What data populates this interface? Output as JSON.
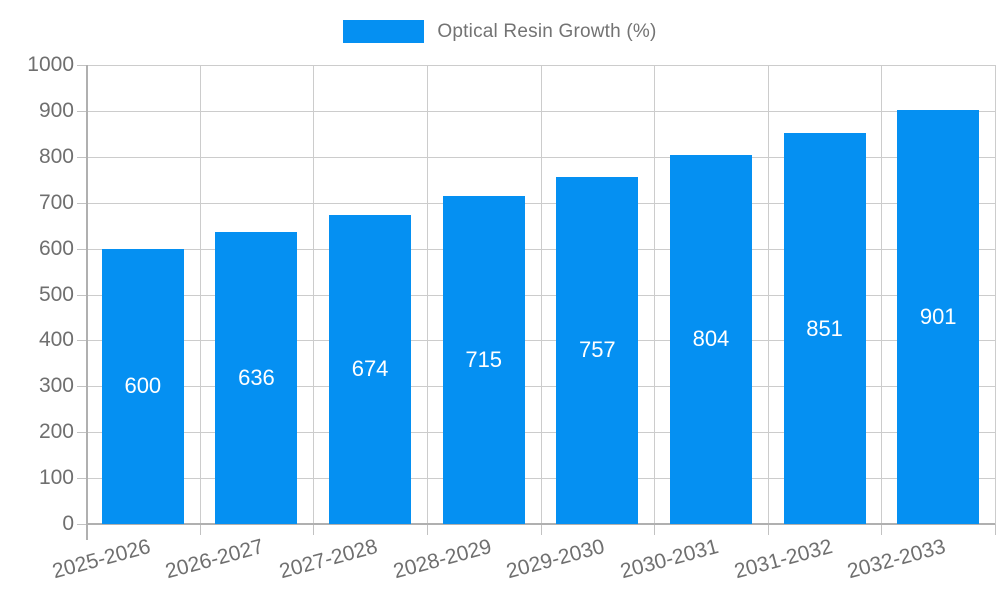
{
  "legend": {
    "label": "Optical Resin Growth (%)"
  },
  "colors": {
    "bar": "#0590f2",
    "grid": "#cccccc",
    "axis": "#b0b0b0",
    "axis_text": "#6f6f6f",
    "legend_text": "#737373",
    "bar_label_text": "#ffffff",
    "background": "#ffffff"
  },
  "chart_data": {
    "type": "bar",
    "title": "Optical Resin Growth (%)",
    "series": [
      {
        "name": "Optical Resin Growth (%)",
        "values": [
          600,
          636,
          674,
          715,
          757,
          804,
          851,
          901
        ]
      }
    ],
    "categories": [
      "2025-2026",
      "2026-2027",
      "2027-2028",
      "2028-2029",
      "2029-2030",
      "2030-2031",
      "2031-2032",
      "2032-2033"
    ],
    "bar_value_labels": [
      "600",
      "636",
      "674",
      "715",
      "757",
      "804",
      "851",
      "901"
    ],
    "xlabel": "",
    "ylabel": "",
    "ylim": [
      0,
      1000
    ],
    "ytick_step": 100,
    "ytick_labels": [
      "0",
      "100",
      "200",
      "300",
      "400",
      "500",
      "600",
      "700",
      "800",
      "900",
      "1000"
    ],
    "grid": true,
    "legend_position": "top",
    "value_label_position": "inside-center",
    "x_label_rotation_deg": -15
  }
}
